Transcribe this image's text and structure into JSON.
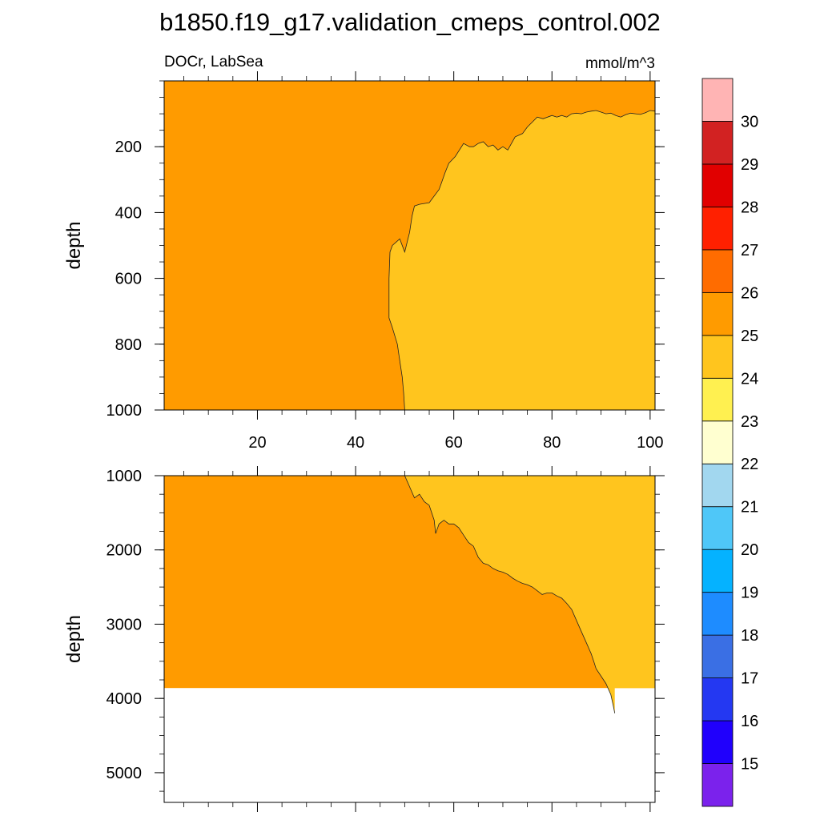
{
  "title": "b1850.f19_g17.validation_cmeps_control.002",
  "chart_data": {
    "type": "contour",
    "variable_label": "DOCr, LabSea",
    "units_label": "mmol/m^3",
    "colorbar": {
      "levels": [
        "15",
        "16",
        "17",
        "18",
        "19",
        "20",
        "21",
        "22",
        "23",
        "24",
        "25",
        "26",
        "27",
        "28",
        "29",
        "30"
      ],
      "colors": [
        "#7b22ec",
        "#2000fc",
        "#2438f2",
        "#3a6fe4",
        "#1e8cff",
        "#05b2ff",
        "#4fc7f8",
        "#a2d7ef",
        "#ffffd0",
        "#fff050",
        "#ffc51e",
        "#ff9b00",
        "#ff6c00",
        "#ff2000",
        "#e10000",
        "#d22222",
        "#ffb4b4"
      ]
    },
    "panels": [
      {
        "name": "upper",
        "ylabel": "depth",
        "xlim": [
          1,
          101
        ],
        "ylim": [
          1000,
          0
        ],
        "xticks": [
          "20",
          "40",
          "60",
          "80",
          "100"
        ],
        "yticks": [
          "200",
          "400",
          "600",
          "800",
          "1000"
        ],
        "regions": [
          {
            "level_range": "25-26",
            "label": "left",
            "description": "25-26"
          },
          {
            "level_range": "24-25",
            "label": "right",
            "description": "24-25"
          }
        ],
        "boundary": {
          "x": [
            50,
            49.8,
            49.5,
            49,
            48.5,
            47.5,
            46.8,
            46.8,
            47,
            47.5,
            49,
            50,
            51,
            51.5,
            52,
            53,
            55,
            57,
            57.5,
            58.2,
            59,
            60.3,
            62,
            63.2,
            64,
            65,
            66,
            67,
            68,
            69,
            70,
            71,
            72.5,
            74,
            75,
            76,
            77,
            78.2,
            80,
            81,
            82,
            83,
            84,
            85,
            86,
            87,
            88,
            89,
            90,
            91,
            92,
            93,
            94,
            95,
            96,
            97,
            98,
            99,
            100,
            101
          ],
          "y": [
            1000,
            950,
            900,
            850,
            800,
            750,
            720,
            600,
            520,
            500,
            480,
            520,
            460,
            410,
            380,
            375,
            370,
            330,
            310,
            280,
            250,
            230,
            190,
            200,
            200,
            190,
            185,
            200,
            195,
            210,
            200,
            210,
            170,
            160,
            140,
            125,
            110,
            115,
            105,
            110,
            105,
            110,
            100,
            98,
            100,
            95,
            92,
            90,
            95,
            100,
            98,
            105,
            110,
            103,
            98,
            100,
            102,
            97,
            90,
            92
          ]
        },
        "masked_below": null
      },
      {
        "name": "lower",
        "ylabel": "depth",
        "xlim": [
          1,
          101
        ],
        "ylim": [
          5400,
          1000
        ],
        "xticks": [],
        "yticks": [
          "1000",
          "2000",
          "3000",
          "4000",
          "5000"
        ],
        "regions": [
          {
            "level_range": "25-26",
            "label": "left",
            "description": "25-26"
          },
          {
            "level_range": "24-25",
            "label": "right",
            "description": "24-25"
          }
        ],
        "boundary": {
          "x": [
            50,
            51,
            52,
            53,
            54,
            55,
            56,
            56.3,
            57,
            58,
            59,
            60,
            61,
            62,
            63,
            64,
            65,
            66,
            67,
            68,
            69,
            70,
            71,
            72,
            73,
            74,
            75,
            76,
            77,
            78,
            79,
            80,
            81,
            82,
            83,
            84,
            85,
            86,
            87,
            88,
            88.5,
            89,
            90,
            91,
            92,
            92.5,
            92.8
          ],
          "y": [
            1000,
            1150,
            1300,
            1250,
            1350,
            1400,
            1600,
            1780,
            1650,
            1600,
            1650,
            1650,
            1700,
            1800,
            1900,
            1950,
            2100,
            2180,
            2200,
            2250,
            2280,
            2300,
            2330,
            2380,
            2420,
            2450,
            2470,
            2500,
            2550,
            2600,
            2580,
            2580,
            2620,
            2650,
            2720,
            2800,
            2950,
            3100,
            3250,
            3400,
            3500,
            3600,
            3700,
            3800,
            3950,
            4100,
            4200
          ]
        },
        "masked_below": 3860
      }
    ]
  }
}
